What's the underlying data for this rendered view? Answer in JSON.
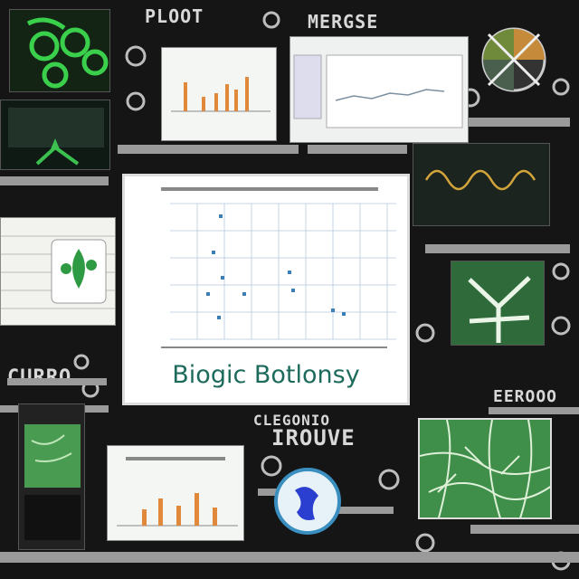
{
  "headline": "Biogic Botlonsy",
  "background_text": [
    "PLOOT",
    "MERGSE",
    "CURRO",
    "IROUVE",
    "EEROOO",
    "CLEGONIO"
  ],
  "colors": {
    "background": "#151515",
    "accent_green": "#3a8a44",
    "title_teal": "#1d6b5c",
    "bar_orange": "#e0893a",
    "scatter_blue": "#3a7fb8"
  }
}
